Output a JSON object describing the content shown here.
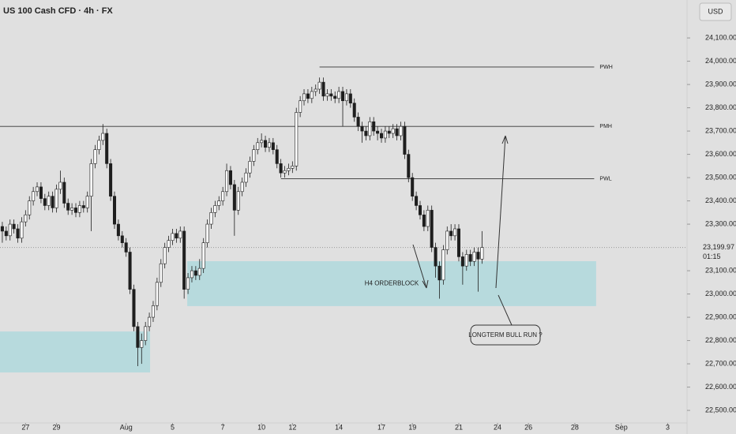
{
  "chart_data": {
    "type": "candlestick",
    "title": "US 100 Cash CFD · 4h · FX",
    "currency": "USD",
    "up_color": "#ffffff",
    "down_color": "#1e1e1e",
    "x": [
      0,
      1,
      2,
      3,
      4,
      5,
      6,
      7,
      8,
      9,
      10,
      11,
      12,
      13,
      14,
      15,
      16,
      17,
      18,
      19,
      20,
      21,
      22,
      23,
      24,
      25,
      26,
      27,
      28,
      29,
      30,
      31,
      32,
      33,
      34,
      35,
      36,
      37,
      38,
      39,
      40,
      41,
      42,
      43,
      44,
      45,
      46,
      47,
      48,
      49,
      50,
      51,
      52,
      53,
      54,
      55,
      56,
      57,
      58,
      59,
      60,
      61,
      62,
      63,
      64,
      65,
      66,
      67,
      68,
      69,
      70,
      71,
      72,
      73,
      74,
      75,
      76,
      77,
      78,
      79,
      80,
      81,
      82,
      83,
      84,
      85,
      86,
      87,
      88,
      89,
      90,
      91,
      92,
      93,
      94,
      95,
      96,
      97,
      98,
      99,
      100,
      101,
      102,
      103,
      104,
      105,
      106,
      107,
      108,
      109,
      110,
      111,
      112,
      113,
      114,
      115,
      116,
      117,
      118,
      119,
      120,
      121,
      122,
      123,
      124
    ],
    "open": [
      23290,
      23270,
      23250,
      23300,
      23280,
      23240,
      23310,
      23340,
      23400,
      23440,
      23460,
      23410,
      23380,
      23420,
      23370,
      23450,
      23480,
      23390,
      23360,
      23370,
      23350,
      23380,
      23370,
      23420,
      23560,
      23620,
      23660,
      23690,
      23560,
      23420,
      23300,
      23250,
      23220,
      23180,
      23020,
      22860,
      22770,
      22800,
      22860,
      22900,
      22950,
      23050,
      23130,
      23200,
      23230,
      23260,
      23240,
      23270,
      23020,
      23070,
      23100,
      23080,
      23110,
      23220,
      23300,
      23350,
      23380,
      23400,
      23440,
      23530,
      23470,
      23360,
      23440,
      23480,
      23520,
      23570,
      23620,
      23650,
      23660,
      23630,
      23650,
      23620,
      23560,
      23520,
      23530,
      23540,
      23550,
      23780,
      23830,
      23860,
      23840,
      23870,
      23880,
      23910,
      23850,
      23860,
      23850,
      23840,
      23870,
      23830,
      23860,
      23820,
      23760,
      23720,
      23700,
      23680,
      23740,
      23700,
      23690,
      23670,
      23700,
      23690,
      23710,
      23680,
      23720,
      23600,
      23500,
      23420,
      23380,
      23340,
      23290,
      23360,
      23200,
      23120,
      23060,
      23190,
      23270,
      23250,
      23280,
      23160,
      23120,
      23170,
      23140,
      23180,
      23150
    ],
    "high": [
      23310,
      23290,
      23320,
      23320,
      23300,
      23330,
      23360,
      23420,
      23460,
      23480,
      23480,
      23430,
      23440,
      23440,
      23470,
      23530,
      23500,
      23410,
      23390,
      23390,
      23400,
      23400,
      23440,
      23580,
      23640,
      23680,
      23730,
      23710,
      23580,
      23440,
      23320,
      23270,
      23240,
      23200,
      23040,
      22880,
      22830,
      22880,
      22920,
      22970,
      23070,
      23150,
      23220,
      23250,
      23280,
      23280,
      23290,
      23290,
      23090,
      23120,
      23120,
      23150,
      23240,
      23320,
      23370,
      23400,
      23420,
      23460,
      23560,
      23550,
      23490,
      23460,
      23500,
      23540,
      23590,
      23640,
      23670,
      23690,
      23680,
      23670,
      23670,
      23640,
      23580,
      23550,
      23560,
      23570,
      23800,
      23850,
      23880,
      23880,
      23890,
      23900,
      23930,
      23930,
      23880,
      23880,
      23870,
      23890,
      23890,
      23880,
      23880,
      23840,
      23780,
      23740,
      23720,
      23760,
      23760,
      23720,
      23710,
      23720,
      23720,
      23730,
      23730,
      23740,
      23740,
      23620,
      23520,
      23440,
      23400,
      23360,
      23380,
      23380,
      23220,
      23140,
      23210,
      23290,
      23300,
      23300,
      23300,
      23180,
      23190,
      23190,
      23200,
      23200,
      23270
    ],
    "low": [
      23220,
      23230,
      23230,
      23260,
      23220,
      23220,
      23290,
      23320,
      23380,
      23420,
      23390,
      23360,
      23360,
      23350,
      23350,
      23430,
      23370,
      23340,
      23340,
      23330,
      23330,
      23350,
      23350,
      23270,
      23540,
      23600,
      23640,
      23540,
      23400,
      23280,
      23230,
      23200,
      23160,
      23000,
      22840,
      22690,
      22700,
      22780,
      22840,
      22880,
      22930,
      23030,
      23110,
      23180,
      23210,
      23220,
      23220,
      22980,
      23000,
      23050,
      23060,
      23060,
      23090,
      23200,
      23280,
      23330,
      23360,
      23380,
      23420,
      23450,
      23250,
      23340,
      23420,
      23460,
      23500,
      23550,
      23600,
      23630,
      23610,
      23610,
      23600,
      23540,
      23500,
      23500,
      23510,
      23520,
      23530,
      23760,
      23810,
      23820,
      23820,
      23850,
      23860,
      23830,
      23830,
      23830,
      23820,
      23820,
      23720,
      23810,
      23800,
      23740,
      23700,
      23650,
      23660,
      23660,
      23680,
      23660,
      23650,
      23650,
      23670,
      23670,
      23660,
      23660,
      23580,
      23480,
      23400,
      23360,
      23320,
      23270,
      23270,
      23180,
      23070,
      22980,
      23040,
      23170,
      23230,
      23230,
      23140,
      23040,
      23100,
      23120,
      23120,
      23010,
      23130
    ],
    "close": [
      23270,
      23250,
      23300,
      23280,
      23240,
      23310,
      23340,
      23400,
      23440,
      23460,
      23410,
      23380,
      23420,
      23370,
      23450,
      23480,
      23390,
      23360,
      23370,
      23350,
      23380,
      23370,
      23420,
      23560,
      23620,
      23660,
      23690,
      23560,
      23420,
      23300,
      23250,
      23220,
      23180,
      23020,
      22860,
      22770,
      22800,
      22860,
      22900,
      22950,
      23050,
      23130,
      23200,
      23230,
      23260,
      23240,
      23270,
      23020,
      23070,
      23100,
      23080,
      23110,
      23220,
      23300,
      23350,
      23380,
      23400,
      23440,
      23530,
      23470,
      23360,
      23440,
      23480,
      23520,
      23570,
      23620,
      23650,
      23660,
      23630,
      23650,
      23620,
      23560,
      23520,
      23530,
      23540,
      23550,
      23780,
      23830,
      23860,
      23840,
      23870,
      23880,
      23910,
      23850,
      23860,
      23850,
      23840,
      23870,
      23830,
      23860,
      23820,
      23760,
      23720,
      23700,
      23680,
      23740,
      23700,
      23690,
      23670,
      23700,
      23690,
      23710,
      23680,
      23720,
      23600,
      23500,
      23420,
      23380,
      23340,
      23290,
      23360,
      23200,
      23120,
      23060,
      23190,
      23270,
      23250,
      23280,
      23160,
      23120,
      23170,
      23140,
      23180,
      23150,
      23199.97
    ],
    "xlim": [
      -0.6,
      177
    ],
    "xticks": [
      {
        "value": 6,
        "label": "27"
      },
      {
        "value": 14,
        "label": "29"
      },
      {
        "value": 32,
        "label": "Aug"
      },
      {
        "value": 44,
        "label": "5"
      },
      {
        "value": 57,
        "label": "7"
      },
      {
        "value": 67,
        "label": "10"
      },
      {
        "value": 75,
        "label": "12"
      },
      {
        "value": 87,
        "label": "14"
      },
      {
        "value": 98,
        "label": "17"
      },
      {
        "value": 106,
        "label": "19"
      },
      {
        "value": 118,
        "label": "21"
      },
      {
        "value": 128,
        "label": "24"
      },
      {
        "value": 136,
        "label": "26"
      },
      {
        "value": 148,
        "label": "28"
      },
      {
        "value": 160,
        "label": "Sep"
      },
      {
        "value": 172,
        "label": "3"
      }
    ],
    "ylim": [
      22446,
      24263
    ],
    "yticks": [
      {
        "value": 22500,
        "label": "22,500.00"
      },
      {
        "value": 22600,
        "label": "22,600.00"
      },
      {
        "value": 22700,
        "label": "22,700.00"
      },
      {
        "value": 22800,
        "label": "22,800.00"
      },
      {
        "value": 22900,
        "label": "22,900.00"
      },
      {
        "value": 23000,
        "label": "23,000.00"
      },
      {
        "value": 23100,
        "label": "23,100.00"
      },
      {
        "value": 23300,
        "label": "23,300.00"
      },
      {
        "value": 23400,
        "label": "23,400.00"
      },
      {
        "value": 23500,
        "label": "23,500.00"
      },
      {
        "value": 23600,
        "label": "23,600.00"
      },
      {
        "value": 23700,
        "label": "23,700.00"
      },
      {
        "value": 23800,
        "label": "23,800.00"
      },
      {
        "value": 23900,
        "label": "23,900.00"
      },
      {
        "value": 24000,
        "label": "24,000.00"
      },
      {
        "value": 24100,
        "label": "24,100.00"
      }
    ],
    "last_price": {
      "value": 23199.97,
      "label": "23,199.97"
    },
    "countdown": "01:15",
    "levels": [
      {
        "label": "PWH",
        "value": 23975,
        "from": 82,
        "to": 153
      },
      {
        "label": "PMH",
        "value": 23720,
        "from": -0.6,
        "to": 153
      },
      {
        "label": "PWL",
        "value": 23495,
        "from": 72,
        "to": 153
      }
    ],
    "zones": [
      {
        "label": "H4 ORDERBLOCK",
        "low": 22948,
        "high": 23141,
        "from": 47.8,
        "to": 153.5,
        "color": "#a9d8dc"
      },
      {
        "low": 22663,
        "high": 22839,
        "from": -0.6,
        "to": 38.2,
        "color": "#a9d8dc"
      }
    ],
    "annotation": "LONGTERM BULL RUN ?"
  }
}
